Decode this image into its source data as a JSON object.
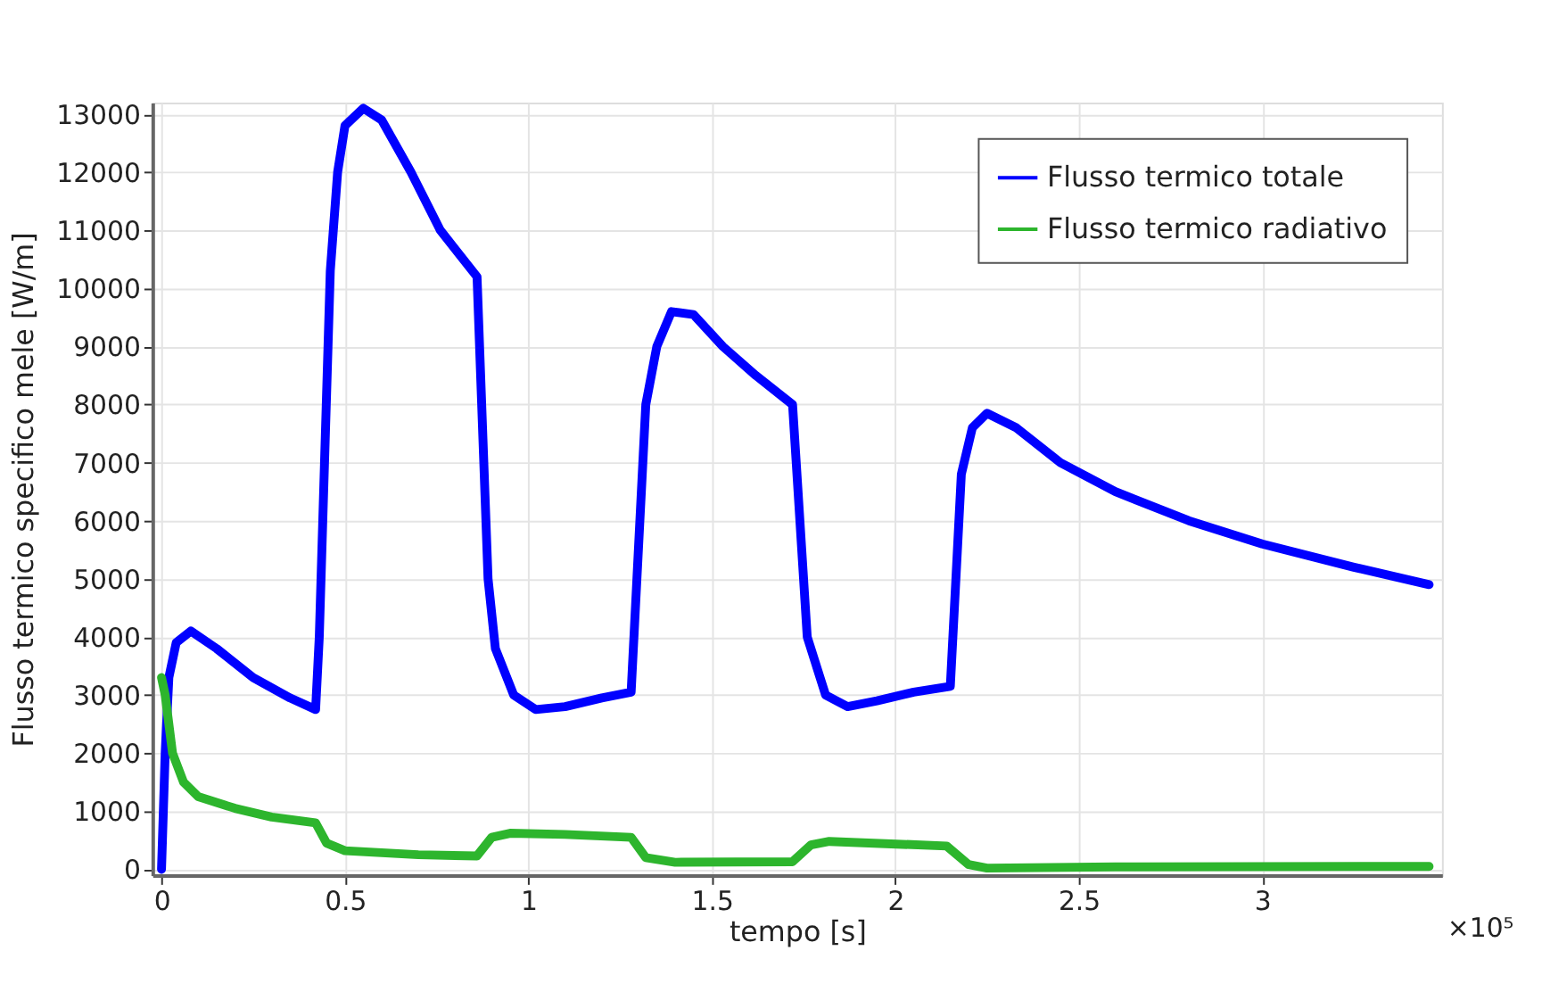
{
  "chart_data": {
    "type": "line",
    "xlabel": "tempo [s]",
    "ylabel": "Flusso termico specifico mele [W/m]",
    "xlim": [
      -0.025,
      3.49
    ],
    "ylim": [
      -100,
      13200
    ],
    "xticks": [
      0,
      0.5,
      1,
      1.5,
      2,
      2.5,
      3
    ],
    "annotations": [
      "×10⁵"
    ],
    "yticks": [
      0,
      1000,
      2000,
      3000,
      4000,
      5000,
      6000,
      7000,
      8000,
      9000,
      10000,
      11000,
      12000,
      13000
    ],
    "grid": true,
    "legend": "top right",
    "line_style": "solid",
    "marker": "none",
    "series": [
      {
        "name": "Flusso termico totale",
        "color": "#0000ff",
        "x": [
          0,
          0.01,
          0.02,
          0.04,
          0.08,
          0.15,
          0.25,
          0.35,
          0.42,
          0.43,
          0.46,
          0.48,
          0.5,
          0.55,
          0.6,
          0.68,
          0.76,
          0.86,
          0.89,
          0.91,
          0.96,
          1.02,
          1.1,
          1.2,
          1.28,
          1.32,
          1.35,
          1.39,
          1.45,
          1.53,
          1.62,
          1.72,
          1.76,
          1.81,
          1.87,
          1.95,
          2.05,
          2.15,
          2.18,
          2.21,
          2.25,
          2.33,
          2.45,
          2.6,
          2.8,
          3.0,
          3.25,
          3.455
        ],
        "values": [
          0,
          2000,
          3300,
          3900,
          4100,
          3800,
          3300,
          2950,
          2750,
          4000,
          10300,
          12000,
          12800,
          13100,
          12900,
          12000,
          11000,
          10200,
          5000,
          3800,
          3000,
          2750,
          2800,
          2950,
          3050,
          8000,
          9000,
          9600,
          9550,
          9000,
          8500,
          8000,
          4000,
          3000,
          2800,
          2900,
          3050,
          3150,
          6800,
          7600,
          7850,
          7600,
          7000,
          6500,
          6000,
          5600,
          5200,
          4900
        ]
      },
      {
        "name": "Flusso termico radiativo",
        "color": "#2db52d",
        "x": [
          0,
          0.01,
          0.03,
          0.06,
          0.1,
          0.2,
          0.3,
          0.42,
          0.45,
          0.5,
          0.7,
          0.86,
          0.9,
          0.95,
          1.1,
          1.28,
          1.32,
          1.4,
          1.72,
          1.77,
          1.82,
          2.14,
          2.2,
          2.25,
          2.6,
          3.455
        ],
        "values": [
          3300,
          3000,
          2000,
          1500,
          1250,
          1050,
          900,
          800,
          450,
          320,
          250,
          230,
          550,
          620,
          600,
          550,
          200,
          120,
          130,
          420,
          480,
          400,
          80,
          20,
          40,
          50
        ]
      }
    ]
  }
}
